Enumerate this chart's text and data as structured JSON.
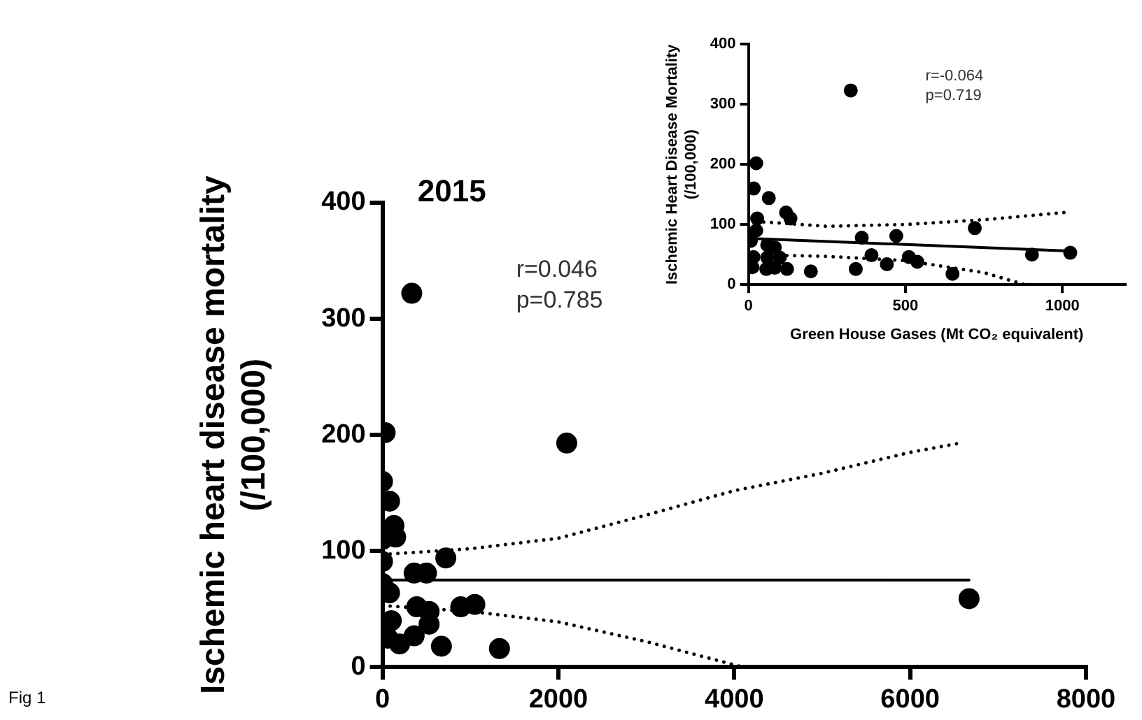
{
  "chart_data": [
    {
      "type": "scatter",
      "title": "2015",
      "ylabel": "Ischemic heart disease mortality\n(/100,000)",
      "annotations": [
        "r=0.046",
        "p=0.785",
        "Fig 1"
      ],
      "xlim": [
        0,
        8000
      ],
      "xticks": [
        0,
        2000,
        4000,
        6000,
        8000
      ],
      "ylim": [
        0,
        400
      ],
      "yticks": [
        0,
        100,
        200,
        300,
        400
      ],
      "grid": false,
      "legend": false,
      "series": [
        {
          "marker": "circle",
          "color": "#000000",
          "x": [
            333,
            30,
            2095,
            0,
            80,
            130,
            150,
            0,
            0,
            720,
            360,
            500,
            0,
            80,
            390,
            530,
            890,
            1050,
            530,
            195,
            360,
            670,
            1330,
            6670,
            100,
            60
          ],
          "values": [
            322,
            202,
            193,
            160,
            143,
            122,
            112,
            110,
            91,
            94,
            81,
            81,
            72,
            64,
            52,
            48,
            52,
            54,
            37,
            20,
            27,
            18,
            16,
            59,
            40,
            25
          ]
        },
        {
          "type": "line",
          "color": "#000000",
          "line_style": "solid",
          "x": [
            0,
            6670
          ],
          "values": [
            75,
            75
          ]
        },
        {
          "type": "line",
          "color": "#000000",
          "line_style": "dotted",
          "x": [
            0,
            1000,
            2000,
            3000,
            4000,
            5000,
            6000,
            6570
          ],
          "values": [
            97,
            102,
            111,
            131,
            152,
            167,
            185,
            193
          ]
        },
        {
          "type": "line",
          "color": "#000000",
          "line_style": "dotted",
          "x": [
            0,
            1000,
            2000,
            3000,
            4100
          ],
          "values": [
            53,
            48,
            39,
            22,
            0
          ]
        }
      ]
    },
    {
      "type": "scatter",
      "xlabel": "Green House Gases (Mt CO₂ equivalent)",
      "ylabel": "Ischemic Heart Disease Mortality\n(/100,000)",
      "annotations": [
        "r=-0.064",
        "p=0.719"
      ],
      "xlim": [
        0,
        1200
      ],
      "xticks": [
        0,
        500,
        1000
      ],
      "ylim": [
        0,
        400
      ],
      "yticks": [
        0,
        100,
        200,
        300,
        400
      ],
      "grid": false,
      "legend": false,
      "series": [
        {
          "marker": "circle",
          "color": "#000000",
          "x": [
            326,
            25,
            17,
            65,
            120,
            134,
            28,
            25,
            8,
            60,
            84,
            361,
            471,
            721,
            16,
            60,
            100,
            392,
            511,
            538,
            441,
            903,
            1025,
            13,
            57,
            84,
            123,
            199,
            342,
            650
          ],
          "values": [
            323,
            202,
            160,
            144,
            120,
            110,
            110,
            90,
            73,
            66,
            62,
            78,
            81,
            94,
            46,
            45,
            45,
            49,
            46,
            38,
            34,
            50,
            53,
            29,
            26,
            28,
            26,
            22,
            26,
            18
          ]
        },
        {
          "type": "line",
          "color": "#000000",
          "line_style": "solid",
          "x": [
            0,
            1025
          ],
          "values": [
            77,
            56
          ]
        },
        {
          "type": "line",
          "color": "#000000",
          "line_style": "dotted",
          "x": [
            0,
            250,
            500,
            750,
            1025
          ],
          "values": [
            106,
            97,
            100,
            108,
            121
          ]
        },
        {
          "type": "line",
          "color": "#000000",
          "line_style": "dotted",
          "x": [
            0,
            250,
            500,
            750,
            880
          ],
          "values": [
            50,
            47,
            40,
            20,
            0
          ]
        }
      ]
    }
  ]
}
